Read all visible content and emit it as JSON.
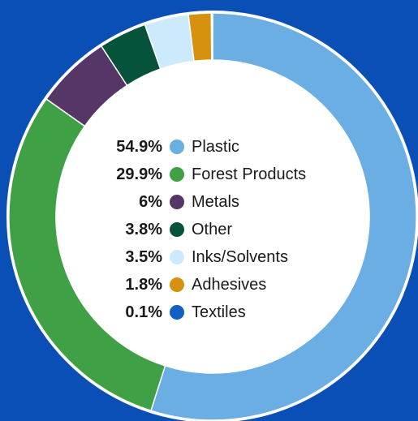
{
  "chart_data": {
    "type": "pie",
    "subtype": "donut",
    "categories": [
      "Plastic",
      "Forest Products",
      "Metals",
      "Other",
      "Inks/Solvents",
      "Adhesives",
      "Textiles"
    ],
    "values": [
      54.9,
      29.9,
      6,
      3.8,
      3.5,
      1.8,
      0.1
    ],
    "value_labels": [
      "54.9%",
      "29.9%",
      "6%",
      "3.8%",
      "3.5%",
      "1.8%",
      "0.1%"
    ],
    "colors": [
      "#6aaee3",
      "#3fa045",
      "#563567",
      "#06533b",
      "#cdeafc",
      "#d6920e",
      "#1160c4"
    ],
    "legend": "center",
    "background": "#0a4fb5"
  }
}
